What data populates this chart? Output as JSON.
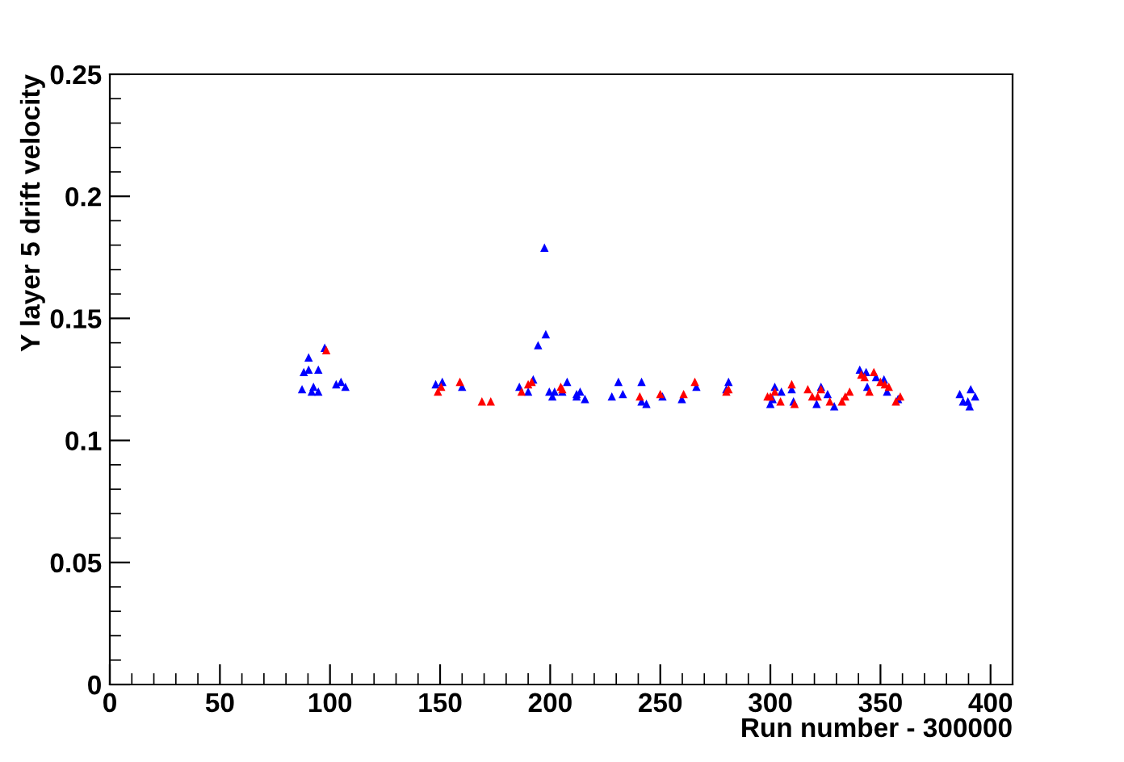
{
  "chart_data": {
    "type": "scatter",
    "xlabel": "Run number - 300000",
    "ylabel": "Y layer 5 drift velocity",
    "xlim": [
      0,
      410
    ],
    "ylim": [
      0,
      0.25
    ],
    "xticks": [
      0,
      50,
      100,
      150,
      200,
      250,
      300,
      350,
      400
    ],
    "yticks": [
      0,
      {
        "value": 0.05,
        "label": "0.05"
      },
      {
        "value": 0.1,
        "label": "0.1"
      },
      {
        "value": 0.15,
        "label": "0.15"
      },
      {
        "value": 0.2,
        "label": "0.2"
      },
      {
        "value": 0.25,
        "label": "0.25"
      }
    ],
    "grid": false,
    "legend": false,
    "marker": "triangle",
    "series": [
      {
        "color": "#0000ff",
        "x": [
          87.3,
          88.1,
          90.3,
          90.3,
          92.5,
          91.7,
          94.7,
          94.7,
          97.6,
          102.8,
          105,
          107,
          148,
          151,
          160,
          186,
          190,
          192.3,
          194.5,
          198,
          197.4,
          199.6,
          201,
          202,
          205.5,
          207.7,
          212,
          213.6,
          212,
          215.8,
          228,
          231,
          233,
          241.5,
          241.5,
          243.7,
          251,
          259.8,
          266.4,
          280,
          281,
          302,
          300,
          305,
          301,
          309.7,
          310.5,
          321,
          323,
          326,
          329,
          340.6,
          343.5,
          348,
          344,
          351.6,
          353,
          358,
          386,
          391,
          393,
          387.5,
          389.7,
          390.5
        ],
        "values": [
          0.121,
          0.128,
          0.129,
          0.134,
          0.122,
          0.12,
          0.12,
          0.129,
          0.138,
          0.123,
          0.124,
          0.122,
          0.123,
          0.124,
          0.122,
          0.122,
          0.12,
          0.125,
          0.139,
          0.1435,
          0.179,
          0.12,
          0.118,
          0.12,
          0.12,
          0.124,
          0.119,
          0.12,
          0.118,
          0.117,
          0.118,
          0.124,
          0.119,
          0.124,
          0.116,
          0.115,
          0.118,
          0.117,
          0.122,
          0.121,
          0.124,
          0.122,
          0.115,
          0.12,
          0.117,
          0.121,
          0.116,
          0.115,
          0.122,
          0.119,
          0.114,
          0.129,
          0.128,
          0.126,
          0.122,
          0.125,
          0.12,
          0.117,
          0.119,
          0.121,
          0.118,
          0.116,
          0.116,
          0.114
        ]
      },
      {
        "color": "#ff0000",
        "x": [
          98.3,
          150.5,
          149,
          159,
          169,
          173,
          187,
          190,
          191.6,
          204.8,
          205.5,
          240.7,
          250,
          260.6,
          265.7,
          280,
          281,
          300,
          302,
          304.6,
          298.7,
          309.7,
          311,
          317,
          319,
          321.5,
          323,
          327,
          332.5,
          334,
          336,
          341.3,
          342.8,
          347,
          345,
          350,
          352,
          353.8,
          359,
          357
        ],
        "values": [
          0.137,
          0.122,
          0.12,
          0.124,
          0.116,
          0.116,
          0.12,
          0.123,
          0.124,
          0.122,
          0.121,
          0.118,
          0.119,
          0.119,
          0.124,
          0.12,
          0.121,
          0.118,
          0.12,
          0.116,
          0.118,
          0.123,
          0.115,
          0.121,
          0.118,
          0.118,
          0.121,
          0.116,
          0.116,
          0.118,
          0.12,
          0.127,
          0.126,
          0.128,
          0.12,
          0.124,
          0.123,
          0.122,
          0.118,
          0.116
        ]
      }
    ]
  }
}
